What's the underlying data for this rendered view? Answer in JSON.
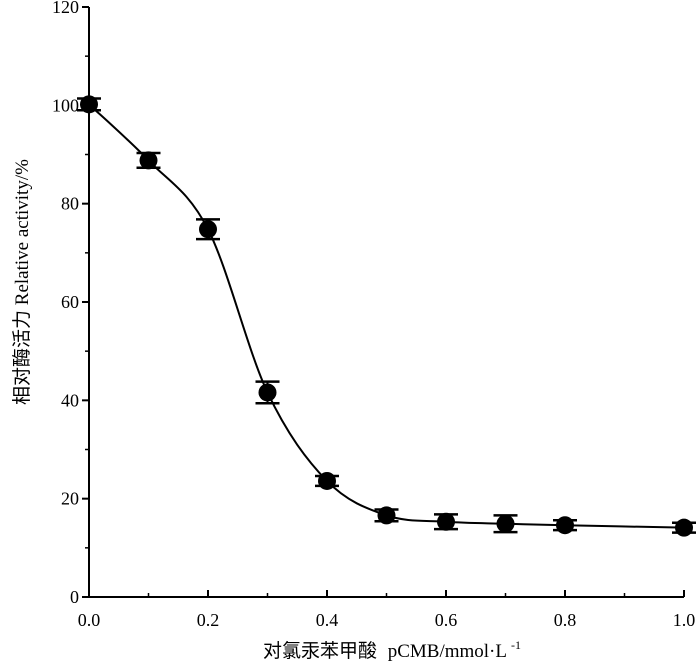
{
  "chart_data": {
    "type": "line",
    "xlabel_cn": "对氯汞苯甲酸",
    "xlabel_en": "pCMB/mmol·L",
    "xlabel_sup": "-1",
    "ylabel": "相对酶活力 Relative activity/%",
    "xlim": [
      0.0,
      1.0
    ],
    "ylim": [
      0,
      120
    ],
    "x_ticks": [
      "0.0",
      "0.2",
      "0.4",
      "0.6",
      "0.8",
      "1.0"
    ],
    "y_ticks": [
      "0",
      "20",
      "40",
      "60",
      "80",
      "100",
      "120"
    ],
    "series": [
      {
        "x": [
          0.0,
          0.1,
          0.2,
          0.3,
          0.4,
          0.5,
          0.6,
          0.7,
          0.8,
          1.0
        ],
        "y": [
          100.2,
          88.8,
          74.8,
          41.6,
          23.6,
          16.6,
          15.3,
          14.9,
          14.6,
          14.1
        ],
        "error": [
          1.2,
          1.5,
          2.0,
          2.2,
          1.0,
          1.2,
          1.5,
          1.7,
          1.0,
          1.0
        ]
      }
    ],
    "colors": {
      "line": "#000000",
      "marker": "#000000"
    }
  }
}
